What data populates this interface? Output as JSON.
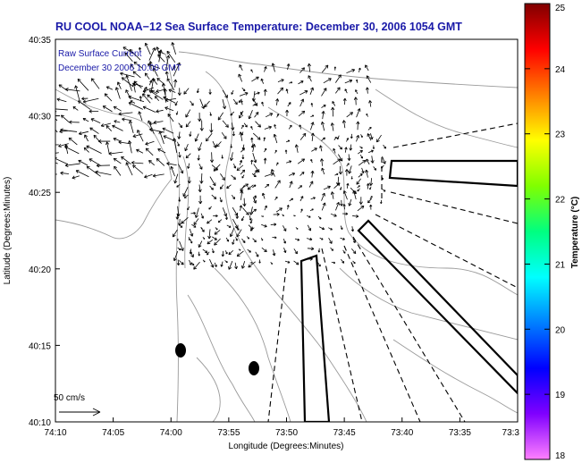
{
  "title": "RU COOL  NOAA−12  Sea Surface Temperature:  December 30, 2006 1054 GMT",
  "legend": {
    "line1": "Raw Surface Current",
    "line2": "December 30 2006 10:00 GMT"
  },
  "scale_label": "50 cm/s",
  "x_axis": {
    "label": "Longitude (Degrees:Minutes)",
    "ticks": [
      "74:10",
      "74:05",
      "74:00",
      "73:55",
      "73:50",
      "73:45",
      "73:40",
      "73:35",
      "73:3"
    ]
  },
  "y_axis": {
    "label": "Latitude (Degrees:Minutes)",
    "ticks": [
      "40:35",
      "40:30",
      "40:25",
      "40:20",
      "40:15",
      "40:10"
    ]
  },
  "colorbar": {
    "label": "Temperature (°C)",
    "ticks": [
      "25",
      "24",
      "23",
      "22",
      "21",
      "20",
      "19",
      "18"
    ],
    "range": [
      18,
      25
    ],
    "colors": [
      "#ff80ff",
      "#8000ff",
      "#0000ff",
      "#0080ff",
      "#00ffff",
      "#00ff80",
      "#80ff00",
      "#ffff00",
      "#ff8000",
      "#ff0000",
      "#800000"
    ]
  },
  "colors": {
    "title": "#1a1aa8",
    "coast": "#888888",
    "vectors": "#000000"
  }
}
